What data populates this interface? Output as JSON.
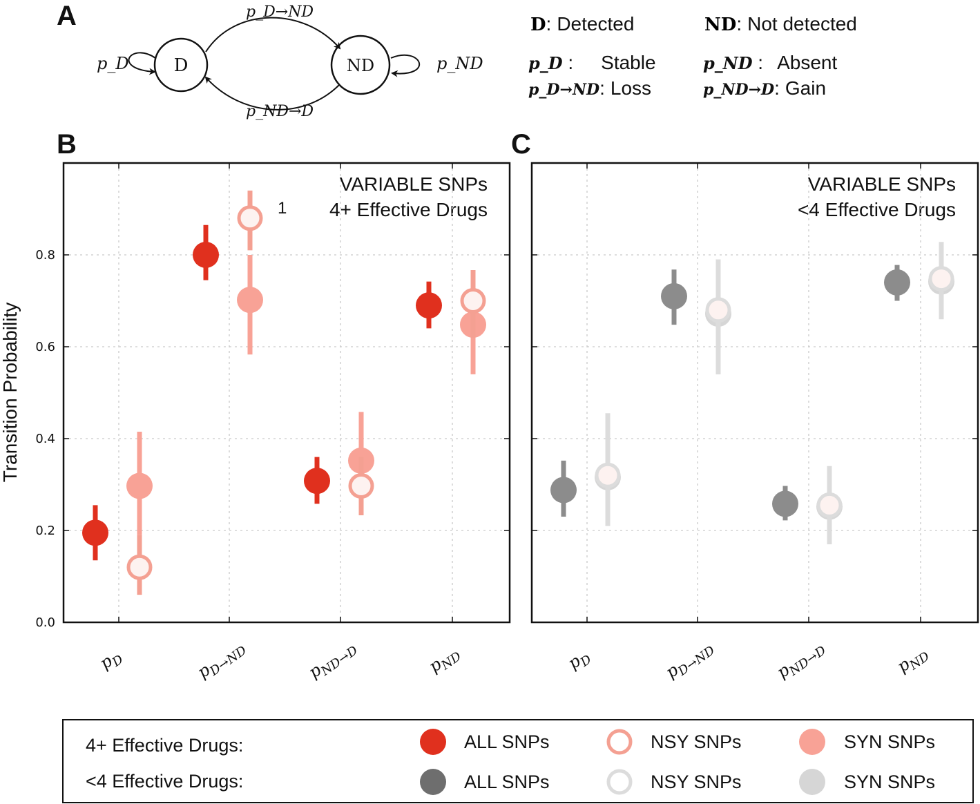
{
  "diagram": {
    "panel_label": "A",
    "state_d": "D",
    "state_nd": "ND",
    "edge_loop_d": "p_D",
    "edge_loop_nd": "p_ND",
    "edge_d_to_nd": "p_D→ND",
    "edge_nd_to_d": "p_ND→D",
    "key": [
      {
        "symbol": "D",
        "sep": ":",
        "text": "Detected"
      },
      {
        "symbol": "ND",
        "sep": ":",
        "text": "Not detected"
      },
      {
        "symbol": "p_D",
        "sep": " :",
        "text": "Stable"
      },
      {
        "symbol": "p_ND",
        "sep": " :",
        "text": "Absent"
      },
      {
        "symbol": "p_D→ND",
        "sep": ":",
        "text": "Loss"
      },
      {
        "symbol": "p_ND→D",
        "sep": ":",
        "text": "Gain"
      }
    ]
  },
  "colors": {
    "all_4plus": "#e0301e",
    "nsy_4plus": "#f4a092",
    "syn_4plus": "#f8a296",
    "all_lt4": "#8c8c8c",
    "nsy_lt4": "#dcdcdc",
    "syn_lt4": "#d6d6d6",
    "legend_all_lt4": "#6e6e6e"
  },
  "chart_data": [
    {
      "panel_label": "B",
      "type": "scatter",
      "title_line1": "VARIABLE SNPs",
      "title_line2": "4+ Effective Drugs",
      "annotation": "1",
      "ylabel": "Transition Probability",
      "ylim": [
        0.0,
        1.0
      ],
      "yticks": [
        "0.0",
        "0.2",
        "0.4",
        "0.6",
        "0.8"
      ],
      "categories": [
        "p_D",
        "p_D→ND",
        "p_ND→D",
        "p_ND"
      ],
      "series": [
        {
          "name": "ALL SNPs",
          "style": "filled",
          "values": [
            0.195,
            0.8,
            0.308,
            0.69
          ],
          "lower": [
            0.135,
            0.745,
            0.258,
            0.64
          ],
          "upper": [
            0.255,
            0.865,
            0.36,
            0.742
          ]
        },
        {
          "name": "NSY SNPs",
          "style": "open",
          "values": [
            0.12,
            0.88,
            0.297,
            0.7
          ],
          "lower": [
            0.06,
            0.81,
            0.233,
            0.62
          ],
          "upper": [
            0.19,
            0.94,
            0.36,
            0.767
          ]
        },
        {
          "name": "SYN SNPs",
          "style": "filled",
          "values": [
            0.297,
            0.702,
            0.352,
            0.648
          ],
          "lower": [
            0.19,
            0.583,
            0.28,
            0.54
          ],
          "upper": [
            0.415,
            0.8,
            0.458,
            0.73
          ]
        }
      ]
    },
    {
      "panel_label": "C",
      "type": "scatter",
      "title_line1": "VARIABLE SNPs",
      "title_line2": "<4 Effective Drugs",
      "ylim": [
        0.0,
        1.0
      ],
      "categories": [
        "p_D",
        "p_D→ND",
        "p_ND→D",
        "p_ND"
      ],
      "series": [
        {
          "name": "ALL SNPs",
          "style": "filled",
          "values": [
            0.288,
            0.71,
            0.258,
            0.74
          ],
          "lower": [
            0.23,
            0.648,
            0.222,
            0.7
          ],
          "upper": [
            0.352,
            0.768,
            0.297,
            0.778
          ]
        },
        {
          "name": "NSY SNPs",
          "style": "open",
          "values": [
            0.32,
            0.68,
            0.255,
            0.748
          ],
          "lower": [
            0.21,
            0.54,
            0.17,
            0.66
          ],
          "upper": [
            0.455,
            0.79,
            0.34,
            0.828
          ]
        },
        {
          "name": "SYN SNPs",
          "style": "filled",
          "values": [
            0.316,
            0.672,
            0.252,
            0.742
          ],
          "lower": [
            0.21,
            0.54,
            0.17,
            0.66
          ],
          "upper": [
            0.455,
            0.79,
            0.34,
            0.828
          ]
        }
      ]
    }
  ],
  "legend": {
    "row1_label": "4+ Effective Drugs:",
    "row2_label": "<4 Effective Drugs:",
    "all": "ALL SNPs",
    "nsy": "NSY SNPs",
    "syn": "SYN SNPs"
  }
}
